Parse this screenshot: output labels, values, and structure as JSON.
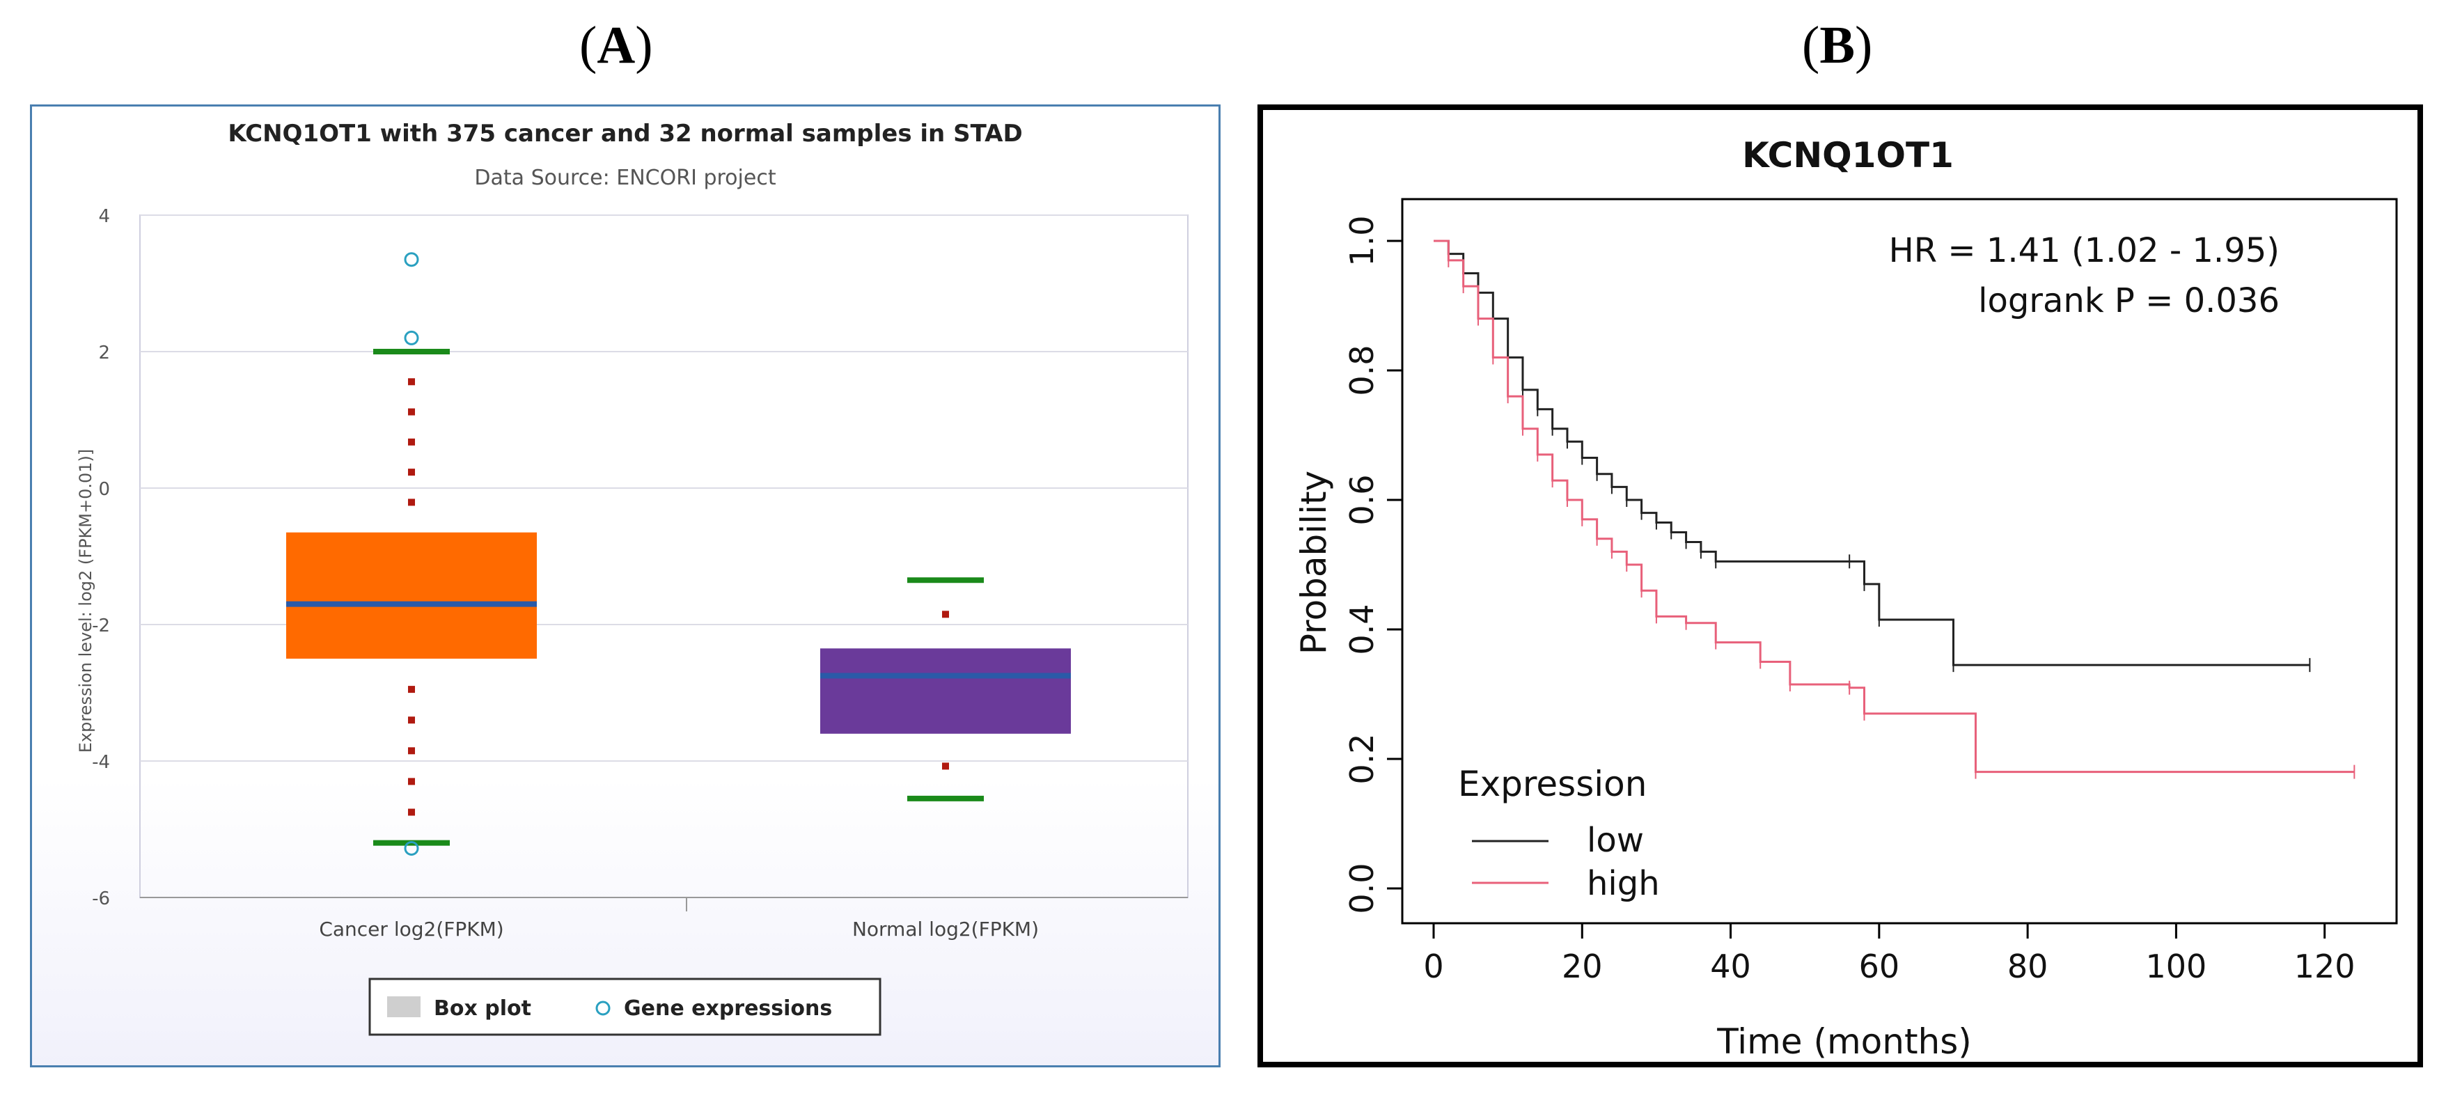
{
  "panel_labels": {
    "a": "A",
    "b": "B"
  },
  "chart_data": [
    {
      "type": "box",
      "title": "KCNQ1OT1 with 375 cancer and 32 normal samples in STAD",
      "subtitle": "Data Source: ENCORI project",
      "xlabel": "",
      "ylabel": "Expression level: log2 (FPKM+0.01)]",
      "ylim": [
        -6,
        4
      ],
      "yticks": [
        "4",
        "2",
        "0",
        "-2",
        "-4",
        "-6"
      ],
      "categories": [
        "Cancer log2(FPKM)",
        "Normal log2(FPKM)"
      ],
      "series": [
        {
          "name": "Cancer log2(FPKM)",
          "color": "#ff6a00",
          "whisker_high": 2.0,
          "q3": -0.65,
          "median": -1.7,
          "q1": -2.5,
          "whisker_low": -5.2,
          "outliers": [
            3.35,
            2.2,
            -5.28
          ]
        },
        {
          "name": "Normal log2(FPKM)",
          "color": "#6a3a9a",
          "whisker_high": -1.35,
          "q3": -2.35,
          "median": -2.75,
          "q1": -3.6,
          "whisker_low": -4.55,
          "outliers": []
        }
      ],
      "legend": {
        "position": "bottom",
        "items": [
          "Box plot",
          "Gene expressions"
        ]
      },
      "colors": {
        "median": "#2a5aa8",
        "whisker_cap": "#1a8a1a",
        "whisker_dots": "#b01a10",
        "outlier": "#2aa0c0"
      }
    },
    {
      "type": "line",
      "title": "KCNQ1OT1",
      "xlabel": "Time (months)",
      "ylabel": "Probability",
      "xlim": [
        0,
        125
      ],
      "ylim": [
        0,
        1
      ],
      "xticks": [
        "0",
        "20",
        "40",
        "60",
        "80",
        "100",
        "120"
      ],
      "yticks": [
        "0.0",
        "0.2",
        "0.4",
        "0.6",
        "0.8",
        "1.0"
      ],
      "annotations": [
        "HR = 1.41 (1.02 - 1.95)",
        "logrank P = 0.036"
      ],
      "legend": {
        "position": "bottom-left",
        "title": "Expression",
        "items": [
          "low",
          "high"
        ]
      },
      "series": [
        {
          "name": "low",
          "color": "#222222",
          "x": [
            0,
            2,
            4,
            6,
            8,
            10,
            12,
            14,
            16,
            18,
            20,
            22,
            24,
            26,
            28,
            30,
            32,
            34,
            36,
            38,
            56,
            58,
            60,
            70,
            118
          ],
          "y": [
            1.0,
            0.98,
            0.95,
            0.92,
            0.88,
            0.82,
            0.77,
            0.74,
            0.71,
            0.69,
            0.665,
            0.64,
            0.62,
            0.6,
            0.58,
            0.565,
            0.55,
            0.535,
            0.52,
            0.505,
            0.505,
            0.47,
            0.415,
            0.345,
            0.345
          ]
        },
        {
          "name": "high",
          "color": "#e8607a",
          "x": [
            0,
            2,
            4,
            6,
            8,
            10,
            12,
            14,
            16,
            18,
            20,
            22,
            24,
            26,
            28,
            30,
            34,
            38,
            44,
            48,
            56,
            58,
            73,
            124
          ],
          "y": [
            1.0,
            0.97,
            0.93,
            0.88,
            0.82,
            0.76,
            0.71,
            0.67,
            0.63,
            0.6,
            0.57,
            0.54,
            0.52,
            0.5,
            0.46,
            0.42,
            0.41,
            0.38,
            0.35,
            0.315,
            0.31,
            0.27,
            0.18,
            0.18
          ]
        }
      ]
    }
  ]
}
